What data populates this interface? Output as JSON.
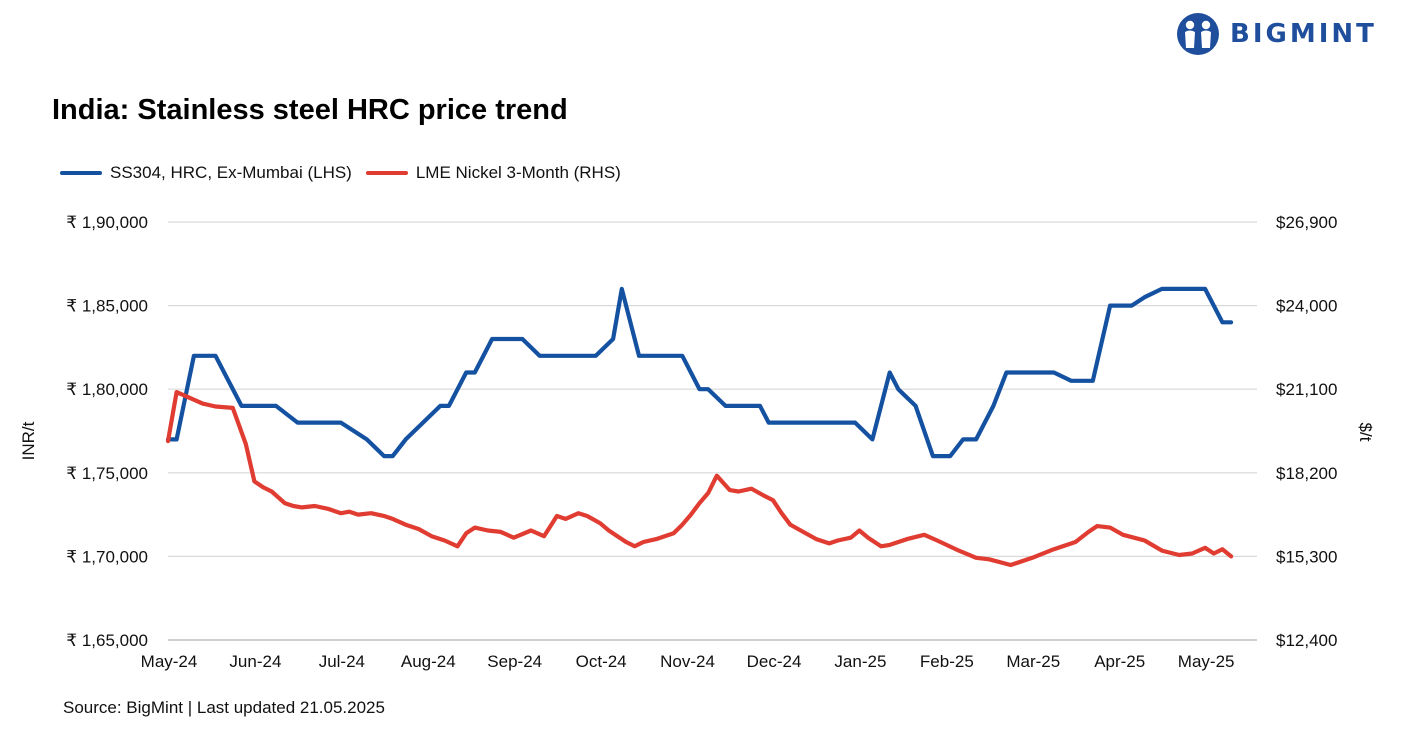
{
  "brand": {
    "name": "BIGMINT",
    "color": "#1f4e9c"
  },
  "chart_data": {
    "type": "line",
    "title": "India: Stainless steel HRC price trend",
    "source": "Source: BigMint | Last updated 21.05.2025",
    "left_axis": {
      "label": "INR/t",
      "range": [
        165000,
        190000
      ],
      "ticks": [
        165000,
        170000,
        175000,
        180000,
        185000,
        190000
      ],
      "tick_labels": [
        "₹ 1,65,000",
        "₹ 1,70,000",
        "₹ 1,75,000",
        "₹ 1,80,000",
        "₹ 1,85,000",
        "₹ 1,90,000"
      ]
    },
    "right_axis": {
      "label": "$/t",
      "range": [
        12400,
        26900
      ],
      "ticks": [
        12400,
        15300,
        18200,
        21100,
        24000,
        26900
      ],
      "tick_labels": [
        "$12,400",
        "$15,300",
        "$18,200",
        "$21,100",
        "$24,000",
        "$26,900"
      ]
    },
    "x_axis": {
      "range": [
        0,
        12.6
      ],
      "ticks": [
        0,
        1,
        2,
        3,
        4,
        5,
        6,
        7,
        8,
        9,
        10,
        11,
        12
      ],
      "tick_labels": [
        "May-24",
        "Jun-24",
        "Jul-24",
        "Aug-24",
        "Sep-24",
        "Oct-24",
        "Nov-24",
        "Dec-24",
        "Jan-25",
        "Feb-25",
        "Mar-25",
        "Apr-25",
        "May-25"
      ]
    },
    "grid": "horizontal",
    "legend_position": "top-left",
    "series": [
      {
        "name": "SS304, HRC, Ex-Mumbai (LHS)",
        "axis": "left",
        "color": "#1451a1",
        "x": [
          0,
          0.1,
          0.3,
          0.55,
          0.85,
          1.25,
          1.5,
          1.7,
          2.0,
          2.3,
          2.5,
          2.6,
          2.75,
          2.95,
          3.15,
          3.25,
          3.45,
          3.55,
          3.75,
          3.9,
          4.1,
          4.3,
          4.45,
          4.65,
          4.8,
          4.95,
          5.15,
          5.25,
          5.45,
          5.55,
          5.75,
          5.85,
          5.95,
          6.15,
          6.25,
          6.45,
          6.6,
          6.85,
          6.95,
          7.15,
          7.5,
          7.95,
          8.15,
          8.35,
          8.45,
          8.65,
          8.85,
          9.05,
          9.2,
          9.35,
          9.55,
          9.7,
          9.85,
          10.05,
          10.25,
          10.45,
          10.7,
          10.9,
          11.15,
          11.3,
          11.5,
          11.75,
          11.9,
          12.0,
          12.2,
          12.3
        ],
        "y": [
          177000,
          177000,
          182000,
          182000,
          179000,
          179000,
          178000,
          178000,
          178000,
          177000,
          176000,
          176000,
          177000,
          178000,
          179000,
          179000,
          181000,
          181000,
          183000,
          183000,
          183000,
          182000,
          182000,
          182000,
          182000,
          182000,
          183000,
          186000,
          182000,
          182000,
          182000,
          182000,
          182000,
          180000,
          180000,
          179000,
          179000,
          179000,
          178000,
          178000,
          178000,
          178000,
          177000,
          181000,
          180000,
          179000,
          176000,
          176000,
          177000,
          177000,
          179000,
          181000,
          181000,
          181000,
          181000,
          180500,
          180500,
          185000,
          185000,
          185500,
          186000,
          186000,
          186000,
          186000,
          184000,
          184000
        ]
      },
      {
        "name": "LME Nickel 3-Month (RHS)",
        "axis": "right",
        "color": "#e03c31",
        "x": [
          0,
          0.1,
          0.25,
          0.4,
          0.55,
          0.75,
          0.9,
          1.0,
          1.1,
          1.2,
          1.35,
          1.45,
          1.55,
          1.7,
          1.85,
          2.0,
          2.1,
          2.2,
          2.35,
          2.5,
          2.6,
          2.75,
          2.9,
          3.05,
          3.2,
          3.35,
          3.45,
          3.55,
          3.7,
          3.85,
          4.0,
          4.2,
          4.35,
          4.5,
          4.6,
          4.75,
          4.85,
          5.0,
          5.1,
          5.2,
          5.3,
          5.4,
          5.5,
          5.65,
          5.85,
          5.95,
          6.05,
          6.15,
          6.25,
          6.35,
          6.5,
          6.6,
          6.75,
          6.9,
          7.0,
          7.1,
          7.2,
          7.35,
          7.5,
          7.65,
          7.75,
          7.9,
          8.0,
          8.1,
          8.25,
          8.35,
          8.55,
          8.75,
          8.9,
          9.15,
          9.35,
          9.5,
          9.75,
          10.0,
          10.25,
          10.5,
          10.65,
          10.75,
          10.9,
          11.05,
          11.3,
          11.5,
          11.7,
          11.85,
          12.0,
          12.1,
          12.2,
          12.3
        ],
        "y": [
          19300,
          21000,
          20800,
          20600,
          20500,
          20450,
          19200,
          17900,
          17700,
          17550,
          17150,
          17050,
          17000,
          17050,
          16950,
          16800,
          16850,
          16750,
          16800,
          16700,
          16600,
          16400,
          16250,
          16000,
          15850,
          15650,
          16100,
          16300,
          16200,
          16150,
          15950,
          16200,
          16000,
          16700,
          16600,
          16800,
          16700,
          16450,
          16200,
          16000,
          15800,
          15650,
          15800,
          15900,
          16100,
          16400,
          16750,
          17150,
          17500,
          18100,
          17600,
          17550,
          17650,
          17400,
          17250,
          16800,
          16400,
          16150,
          15900,
          15750,
          15850,
          15950,
          16200,
          15950,
          15650,
          15700,
          15900,
          16050,
          15850,
          15500,
          15250,
          15200,
          15000,
          15250,
          15550,
          15800,
          16150,
          16350,
          16300,
          16050,
          15850,
          15500,
          15350,
          15400,
          15600,
          15400,
          15550,
          15300
        ]
      }
    ]
  }
}
